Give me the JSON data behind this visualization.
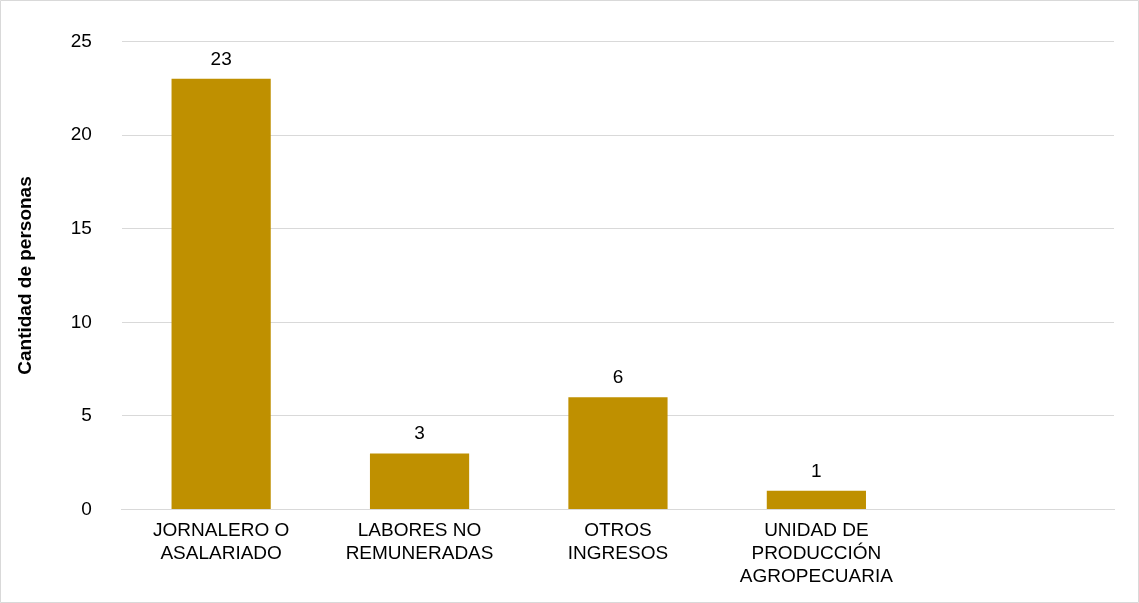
{
  "chart_data": {
    "type": "bar",
    "ylabel": "Cantidad de personas",
    "categories": [
      "JORNALERO O ASALARIADO",
      "LABORES NO REMUNERADAS",
      "OTROS INGRESOS",
      "UNIDAD DE PRODUCCIÓN AGROPECUARIA",
      null
    ],
    "values": [
      23,
      3,
      6,
      1,
      null
    ],
    "color": "#bf9000",
    "ylim": [
      0,
      25
    ],
    "yticks": [
      0,
      5,
      10,
      15,
      20,
      25
    ],
    "grid": "y",
    "legend": false,
    "data_labels": true
  }
}
